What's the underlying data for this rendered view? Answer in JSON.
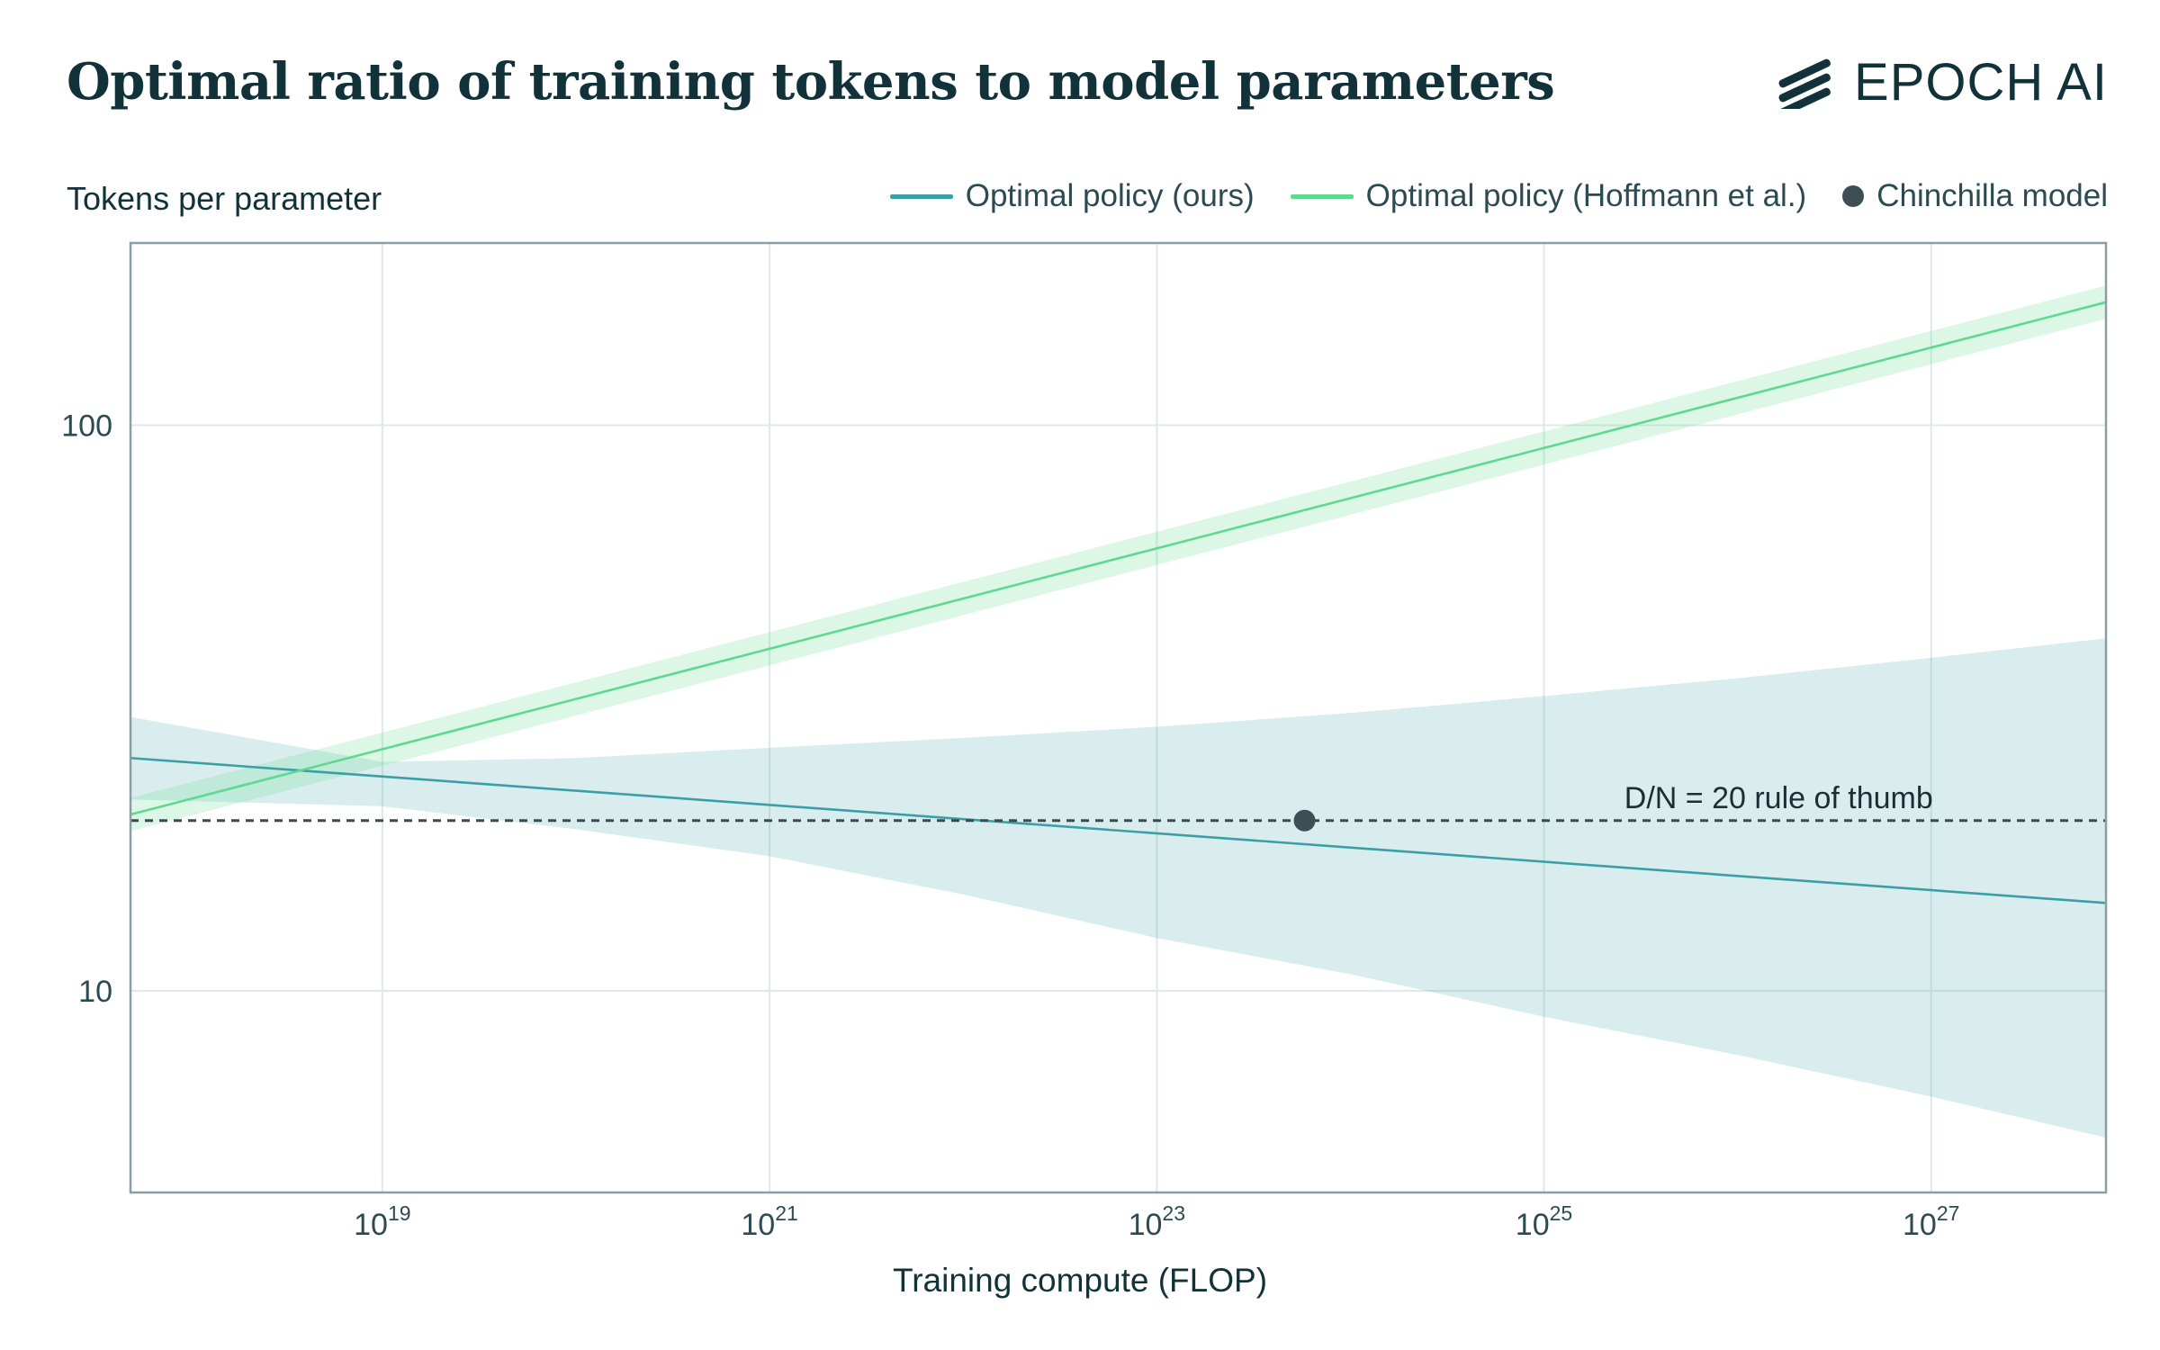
{
  "header": {
    "title": "Optimal ratio of training tokens to model parameters",
    "logo_text": "EPOCH AI"
  },
  "legend": {
    "items": [
      {
        "label": "Optimal policy (ours)",
        "color": "#3a9fa6",
        "kind": "line"
      },
      {
        "label": "Optimal policy (Hoffmann et al.)",
        "color": "#5fd98f",
        "kind": "line"
      },
      {
        "label": "Chinchilla model",
        "color": "#3d4f55",
        "kind": "dot"
      }
    ]
  },
  "chart_data": {
    "type": "line",
    "title": "Optimal ratio of training tokens to model parameters",
    "xlabel": "Training compute (FLOP)",
    "ylabel": "Tokens per parameter",
    "x_scale": "log",
    "y_scale": "log",
    "xlim": [
      5e+17,
      8e+27
    ],
    "ylim": [
      4.4,
      210
    ],
    "x_ticks": [
      1e+19,
      1e+21,
      1e+23,
      1e+25,
      1e+27
    ],
    "x_tick_labels": [
      {
        "base": "10",
        "exp": "19"
      },
      {
        "base": "10",
        "exp": "21"
      },
      {
        "base": "10",
        "exp": "23"
      },
      {
        "base": "10",
        "exp": "25"
      },
      {
        "base": "10",
        "exp": "27"
      }
    ],
    "y_ticks": [
      10,
      100
    ],
    "y_tick_labels": [
      "10",
      "100"
    ],
    "grid": true,
    "series": [
      {
        "name": "Optimal policy (ours)",
        "color": "#3a9fa6",
        "x": [
          5e+17,
          8e+27
        ],
        "y": [
          25.8,
          14.3
        ],
        "band": {
          "x": [
            5e+17,
            1e+19,
            1e+20,
            1e+21,
            1e+22,
            1e+23,
            1e+24,
            1e+25,
            1e+26,
            1e+27,
            8e+27
          ],
          "lower": [
            21.8,
            21.2,
            19.3,
            17.3,
            14.8,
            12.4,
            10.7,
            9.0,
            7.7,
            6.5,
            5.5
          ],
          "upper": [
            30.5,
            25.4,
            25.8,
            26.9,
            28.0,
            29.3,
            31.0,
            33.2,
            35.7,
            38.8,
            42.0
          ]
        }
      },
      {
        "name": "Optimal policy (Hoffmann et al.)",
        "color": "#5fd98f",
        "x": [
          5e+17,
          8e+27
        ],
        "y": [
          20.5,
          165
        ],
        "band_ratio": 1.07
      }
    ],
    "reference_line": {
      "y": 20,
      "label": "D/N = 20 rule of thumb",
      "label_x": 2.6e+25
    },
    "points": [
      {
        "name": "Chinchilla model",
        "x": 5.8e+23,
        "y": 20,
        "color": "#3d4f55"
      }
    ]
  }
}
